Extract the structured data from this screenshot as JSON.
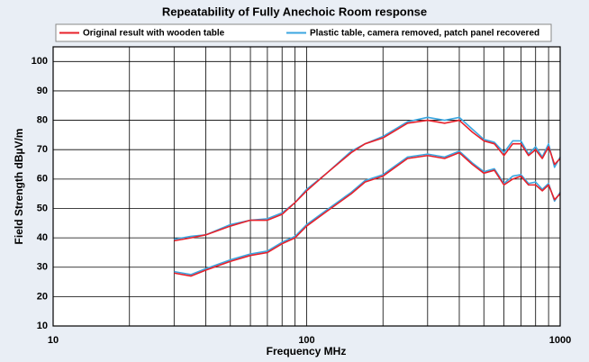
{
  "chart_data": {
    "type": "line",
    "title": "Repeatability of Fully Anechoic Room response",
    "x_label": "Frequency MHz",
    "y_label": "Field Strength dBµV/m",
    "log_x": true,
    "grid": true,
    "xlim": [
      10,
      1000
    ],
    "xticks": [
      10,
      100,
      1000
    ],
    "x_minor_ticks": [
      20,
      30,
      40,
      50,
      60,
      70,
      80,
      90,
      200,
      300,
      400,
      500,
      600,
      700,
      800,
      900
    ],
    "ylim": [
      10,
      105
    ],
    "yticks": [
      10,
      20,
      30,
      40,
      50,
      60,
      70,
      80,
      90,
      100
    ],
    "x": [
      30,
      35,
      40,
      50,
      60,
      70,
      80,
      90,
      100,
      120,
      150,
      170,
      200,
      250,
      300,
      350,
      400,
      450,
      500,
      550,
      600,
      650,
      700,
      750,
      800,
      850,
      900,
      950,
      1000
    ],
    "series": [
      {
        "name": "Original result with wooden table",
        "color": "#e8202a",
        "curves": [
          {
            "values": [
              39,
              40,
              41,
              44,
              46,
              46,
              48,
              52,
              56,
              62,
              69,
              72,
              74,
              79,
              80,
              79,
              80,
              76,
              73,
              72,
              68,
              72,
              72,
              68,
              70,
              67,
              71,
              65,
              67
            ]
          },
          {
            "values": [
              28,
              27,
              29,
              32,
              34,
              35,
              38,
              40,
              44,
              49,
              55,
              59,
              61,
              67,
              68,
              67,
              69,
              65,
              62,
              63,
              58,
              60,
              61,
              58,
              58,
              56,
              58,
              53,
              55
            ]
          }
        ]
      },
      {
        "name": "Plastic table, camera removed, patch panel recovered",
        "color": "#3ba6e0",
        "curves": [
          {
            "values": [
              39.5,
              40.5,
              41,
              44.5,
              46,
              46.5,
              48.5,
              52,
              56.5,
              62,
              69.5,
              72,
              74.5,
              79.5,
              81,
              80,
              81,
              77,
              73.5,
              72.5,
              69,
              73,
              73,
              68.5,
              71,
              67.5,
              72,
              64,
              67.5
            ]
          },
          {
            "values": [
              28.5,
              27.5,
              29.5,
              32.5,
              34.5,
              35.5,
              38.5,
              40.5,
              44.5,
              49.5,
              55.5,
              59.5,
              61.5,
              67.5,
              68.5,
              67.5,
              69.5,
              65.5,
              62.5,
              63.5,
              58.5,
              61,
              61.5,
              58.5,
              59,
              56.5,
              58.5,
              52.5,
              55.5
            ]
          }
        ]
      }
    ]
  }
}
